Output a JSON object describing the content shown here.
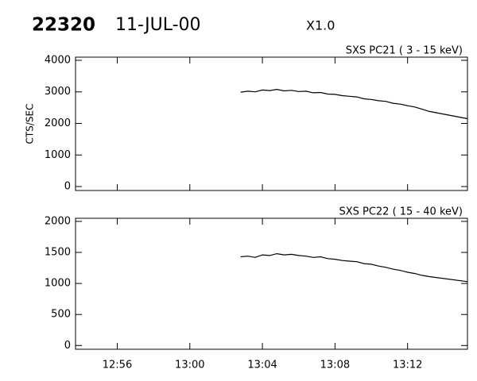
{
  "header": {
    "id": "22320",
    "date": "11-JUL-00",
    "class": "X1.0"
  },
  "chart_data": [
    {
      "type": "line",
      "title": "SXS PC21  (  3 - 15 keV)",
      "y_label": "CTS/SEC",
      "color": "#000000",
      "xlim": [
        53.7,
        75.3
      ],
      "ylim": [
        -125,
        4100
      ],
      "yticks": [
        0,
        1000,
        2000,
        3000,
        4000
      ],
      "x": [
        62.8,
        63.2,
        63.6,
        64.0,
        64.4,
        64.8,
        65.2,
        65.6,
        66.0,
        66.4,
        66.8,
        67.2,
        67.6,
        68.0,
        68.4,
        68.8,
        69.2,
        69.6,
        70.0,
        70.4,
        70.8,
        71.2,
        71.6,
        72.0,
        72.4,
        72.8,
        73.2,
        75.3
      ],
      "values": [
        2990,
        3020,
        3000,
        3060,
        3040,
        3080,
        3030,
        3050,
        3010,
        3020,
        2970,
        2980,
        2930,
        2920,
        2880,
        2860,
        2840,
        2780,
        2760,
        2720,
        2700,
        2640,
        2610,
        2560,
        2520,
        2450,
        2380,
        2150
      ]
    },
    {
      "type": "line",
      "title": "SXS PC22  ( 15 - 40 keV)",
      "color": "#000000",
      "xlim": [
        53.7,
        75.3
      ],
      "ylim": [
        -60,
        2050
      ],
      "yticks": [
        0,
        500,
        1000,
        1500,
        2000
      ],
      "xticks": [
        {
          "value": 56,
          "label": "12:56"
        },
        {
          "value": 60,
          "label": "13:00"
        },
        {
          "value": 64,
          "label": "13:04"
        },
        {
          "value": 68,
          "label": "13:08"
        },
        {
          "value": 72,
          "label": "13:12"
        }
      ],
      "x": [
        62.8,
        63.2,
        63.6,
        64.0,
        64.4,
        64.8,
        65.2,
        65.6,
        66.0,
        66.4,
        66.8,
        67.2,
        67.6,
        68.0,
        68.4,
        68.8,
        69.2,
        69.6,
        70.0,
        70.4,
        70.8,
        71.2,
        71.6,
        72.0,
        72.4,
        72.8,
        73.2,
        75.3
      ],
      "values": [
        1430,
        1440,
        1420,
        1460,
        1450,
        1480,
        1460,
        1470,
        1450,
        1440,
        1420,
        1430,
        1400,
        1390,
        1370,
        1360,
        1350,
        1320,
        1310,
        1280,
        1260,
        1230,
        1210,
        1180,
        1160,
        1130,
        1110,
        1030
      ]
    }
  ]
}
